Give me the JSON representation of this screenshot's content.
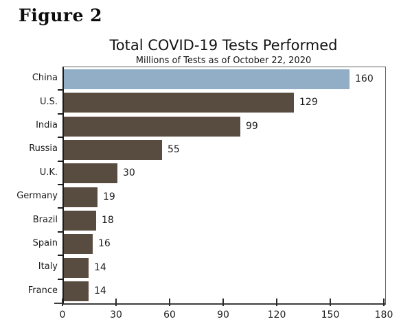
{
  "figure_label": "Figure 2",
  "chart": {
    "title": "Total COVID-19 Tests Performed",
    "subtitle": "Millions of Tests as of October 22, 2020"
  },
  "chart_data": {
    "type": "bar",
    "orientation": "horizontal",
    "title": "Total COVID-19 Tests Performed",
    "subtitle": "Millions of Tests as of October 22, 2020",
    "categories": [
      "China",
      "U.S.",
      "India",
      "Russia",
      "U.K.",
      "Germany",
      "Brazil",
      "Spain",
      "Italy",
      "France"
    ],
    "values": [
      160,
      129,
      99,
      55,
      30,
      19,
      18,
      16,
      14,
      14
    ],
    "data_labels": [
      "160",
      "129",
      "99",
      "55",
      "30",
      "19",
      "18",
      "16",
      "14",
      "14"
    ],
    "xlabel": "",
    "ylabel": "",
    "xlim": [
      0,
      180
    ],
    "xticks": [
      0,
      30,
      60,
      90,
      120,
      150,
      180
    ],
    "grid": false,
    "legend": false,
    "highlight_index": 0,
    "colors": {
      "highlight_bar": "#92aec7",
      "default_bar": "#584b3f",
      "axis": "#1c1c1c",
      "frame": "#5f5f5f",
      "text": "#1a1a1a"
    }
  }
}
